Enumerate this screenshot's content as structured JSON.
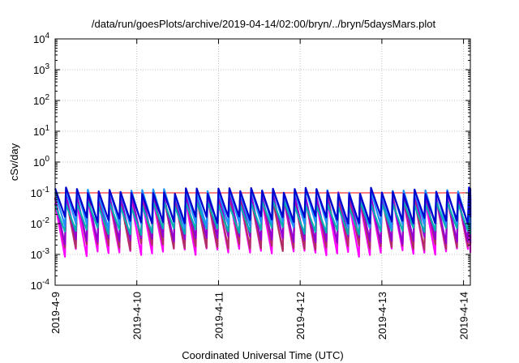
{
  "chart_data": {
    "type": "line",
    "title": "/data/run/goesPlots/archive/2019-04-14/02:00/bryn/../bryn/5daysMars.plot",
    "xlabel": "Coordinated Universal Time (UTC)",
    "ylabel": "cSv/day",
    "y_scale": "log",
    "ylim": [
      0.0001,
      10000
    ],
    "xlim": [
      "2019-04-09 00:00",
      "2019-04-14 02:00"
    ],
    "grid": true,
    "legend": "none",
    "x_tick_labels": [
      "2019-4-9",
      "2019-4-10",
      "2019-4-11",
      "2019-4-12",
      "2019-4-13",
      "2019-4-14"
    ],
    "y_tick_labels": [
      {
        "base": "10",
        "exp": "-4",
        "value": 0.0001
      },
      {
        "base": "10",
        "exp": "-3",
        "value": 0.001
      },
      {
        "base": "10",
        "exp": "-2",
        "value": 0.01
      },
      {
        "base": "10",
        "exp": "-1",
        "value": 0.1
      },
      {
        "base": "10",
        "exp": "0",
        "value": 1
      },
      {
        "base": "10",
        "exp": "1",
        "value": 10
      },
      {
        "base": "10",
        "exp": "2",
        "value": 100
      },
      {
        "base": "10",
        "exp": "3",
        "value": 1000
      },
      {
        "base": "10",
        "exp": "4",
        "value": 10000
      }
    ],
    "reference_line": {
      "value": 0.1,
      "color": "#ff0000"
    },
    "oscillation_period_hours": 3.2,
    "series": [
      {
        "color": "#ff00ff",
        "peak": 0.06,
        "trough": 0.0012
      },
      {
        "color": "#b03060",
        "peak": 0.075,
        "trough": 0.0018
      },
      {
        "color": "#9400d3",
        "peak": 0.085,
        "trough": 0.003
      },
      {
        "color": "#00b0b0",
        "peak": 0.045,
        "trough": 0.006
      },
      {
        "color": "#1e90ff",
        "peak": 0.11,
        "trough": 0.009
      },
      {
        "color": "#0000cd",
        "peak": 0.12,
        "trough": 0.014
      }
    ]
  }
}
